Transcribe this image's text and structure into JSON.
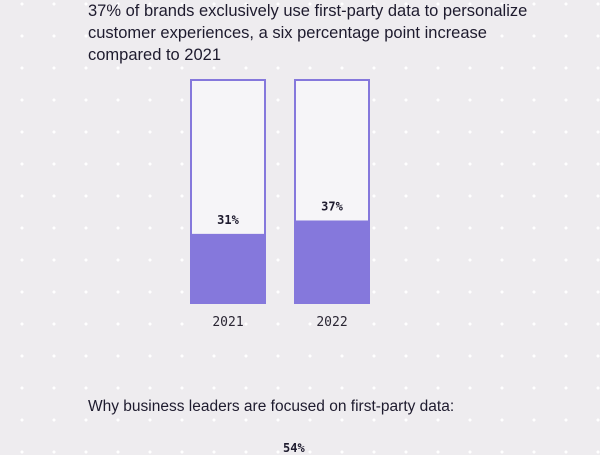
{
  "headline": "37% of brands exclusively use first-party data to personalize customer experiences, a six percentage point increase compared to 2021",
  "section_heading": "Why business leaders are focused on first-party data:",
  "next_chart_first_value": "54%",
  "colors": {
    "bar_fill": "#8578dc",
    "bar_outline": "#8578dc",
    "background": "#eeecef"
  },
  "chart_data": {
    "type": "bar",
    "categories": [
      "2021",
      "2022"
    ],
    "values": [
      31,
      37
    ],
    "value_labels": [
      "31%",
      "37%"
    ],
    "ylim": [
      0,
      100
    ],
    "grid": false,
    "legend": "none"
  }
}
